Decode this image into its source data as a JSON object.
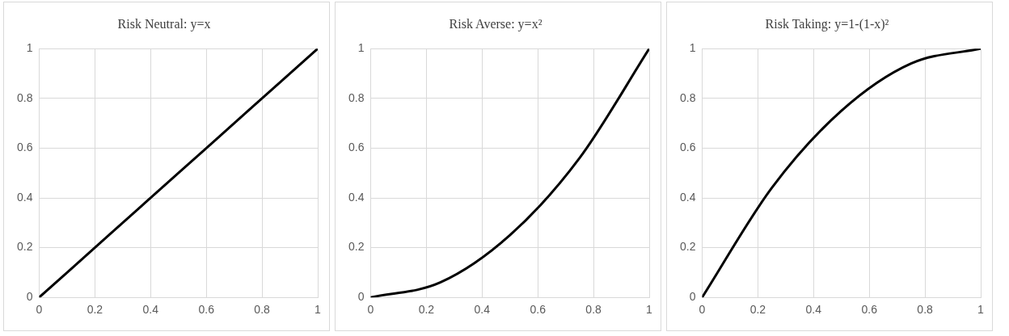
{
  "chart_data": [
    {
      "type": "line",
      "title": "Risk Neutral: y=x",
      "x": [
        0,
        0.25,
        0.5,
        0.75,
        1
      ],
      "series": [
        {
          "color": "#000000",
          "values": [
            0,
            0.25,
            0.5,
            0.75,
            1
          ]
        }
      ],
      "xlim": [
        0,
        1
      ],
      "ylim": [
        0,
        1
      ],
      "xticks": [
        0,
        0.2,
        0.4,
        0.6,
        0.8,
        1
      ],
      "yticks": [
        0,
        0.2,
        0.4,
        0.6,
        0.8,
        1
      ],
      "grid": true,
      "marker": "none",
      "line_style": "solid"
    },
    {
      "type": "line",
      "title": "Risk Averse: y=x²",
      "x": [
        0,
        0.25,
        0.5,
        0.75,
        1
      ],
      "series": [
        {
          "color": "#000000",
          "values": [
            0,
            0.06,
            0.25,
            0.56,
            1
          ]
        }
      ],
      "xlim": [
        0,
        1
      ],
      "ylim": [
        0,
        1
      ],
      "xticks": [
        0,
        0.2,
        0.4,
        0.6,
        0.8,
        1
      ],
      "yticks": [
        0,
        0.2,
        0.4,
        0.6,
        0.8,
        1
      ],
      "grid": true,
      "marker": "none",
      "line_style": "solid"
    },
    {
      "type": "line",
      "title": "Risk Taking: y=1-(1-x)²",
      "x": [
        0,
        0.25,
        0.5,
        0.75,
        1
      ],
      "series": [
        {
          "color": "#000000",
          "values": [
            0,
            0.44,
            0.75,
            0.94,
            1
          ]
        }
      ],
      "xlim": [
        0,
        1
      ],
      "ylim": [
        0,
        1
      ],
      "xticks": [
        0,
        0.2,
        0.4,
        0.6,
        0.8,
        1
      ],
      "yticks": [
        0,
        0.2,
        0.4,
        0.6,
        0.8,
        1
      ],
      "grid": true,
      "marker": "none",
      "line_style": "solid"
    }
  ]
}
